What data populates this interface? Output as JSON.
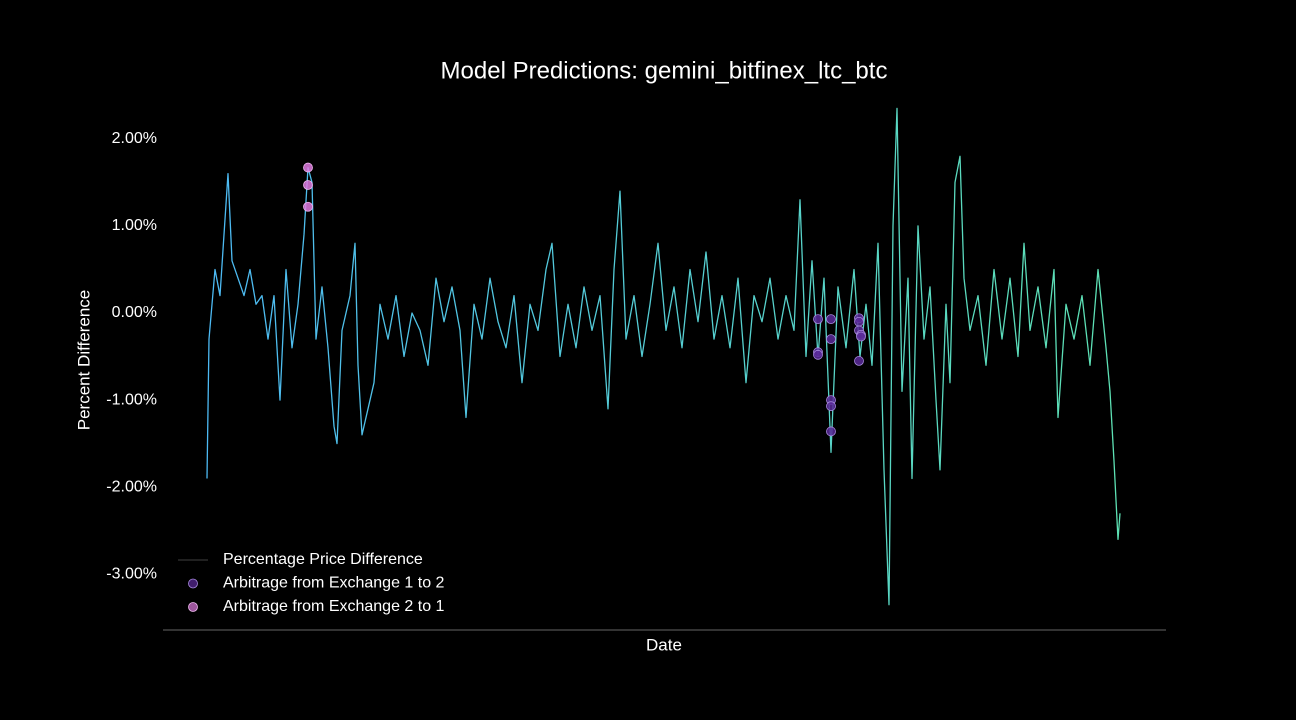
{
  "chart_data": {
    "type": "line",
    "title": "Model Predictions: gemini_bitfinex_ltc_btc",
    "xlabel": "Date",
    "ylabel": "Percent Difference",
    "xlim": [
      0,
      1003
    ],
    "ylim": [
      -3.64,
      2.4
    ],
    "yticks": [
      {
        "value": 2,
        "label": "2.00%"
      },
      {
        "value": 1,
        "label": "1.00%"
      },
      {
        "value": 0,
        "label": "0.00%"
      },
      {
        "value": -1,
        "label": "-1.00%"
      },
      {
        "value": -2,
        "label": "-2.00%"
      },
      {
        "value": -3,
        "label": "-3.00%"
      }
    ],
    "legend": "lower left",
    "series": [
      {
        "name": "Percentage Price Difference",
        "color": "#4cb8f7",
        "color_end": "#5ee3b0",
        "legend_color": "#2a2a2a",
        "x": [
          44,
          46,
          52,
          57,
          61,
          65,
          69,
          75,
          81,
          87,
          93,
          99,
          105,
          111,
          117,
          123,
          129,
          135,
          141,
          145,
          149,
          153,
          159,
          165,
          171,
          174,
          179,
          187,
          192,
          195,
          199,
          205,
          211,
          217,
          225,
          233,
          241,
          249,
          257,
          265,
          273,
          281,
          289,
          297,
          303,
          311,
          319,
          327,
          335,
          343,
          351,
          359,
          367,
          375,
          383,
          389,
          397,
          405,
          413,
          421,
          429,
          437,
          445,
          451,
          457,
          463,
          471,
          479,
          487,
          495,
          503,
          511,
          519,
          527,
          535,
          543,
          551,
          559,
          567,
          575,
          583,
          591,
          599,
          607,
          615,
          623,
          631,
          637,
          643,
          649,
          655,
          661,
          668,
          675,
          683,
          691,
          697,
          703,
          709,
          715,
          721,
          726,
          730,
          734,
          739,
          745,
          749,
          755,
          761,
          767,
          773,
          777,
          783,
          787,
          792,
          797,
          801,
          807,
          815,
          823,
          831,
          839,
          847,
          855,
          861,
          867,
          875,
          883,
          891,
          895,
          903,
          911,
          919,
          927,
          935,
          943,
          947,
          951,
          955,
          957
        ],
        "values": [
          -1.9,
          -0.3,
          0.5,
          0.2,
          0.9,
          1.6,
          0.6,
          0.4,
          0.2,
          0.5,
          0.1,
          0.2,
          -0.3,
          0.2,
          -1.0,
          0.5,
          -0.4,
          0.1,
          0.9,
          1.67,
          1.5,
          -0.3,
          0.3,
          -0.4,
          -1.3,
          -1.5,
          -0.2,
          0.2,
          0.8,
          -0.6,
          -1.4,
          -1.1,
          -0.8,
          0.1,
          -0.3,
          0.2,
          -0.5,
          0.0,
          -0.2,
          -0.6,
          0.4,
          -0.1,
          0.3,
          -0.2,
          -1.2,
          0.1,
          -0.3,
          0.4,
          -0.1,
          -0.4,
          0.2,
          -0.8,
          0.1,
          -0.2,
          0.5,
          0.8,
          -0.5,
          0.1,
          -0.4,
          0.3,
          -0.2,
          0.2,
          -1.1,
          0.5,
          1.4,
          -0.3,
          0.2,
          -0.5,
          0.1,
          0.8,
          -0.2,
          0.3,
          -0.4,
          0.5,
          -0.1,
          0.7,
          -0.3,
          0.2,
          -0.4,
          0.4,
          -0.8,
          0.2,
          -0.1,
          0.4,
          -0.3,
          0.2,
          -0.2,
          1.3,
          -0.5,
          0.6,
          -0.5,
          0.4,
          -1.6,
          0.3,
          -0.4,
          0.5,
          -0.5,
          0.1,
          -0.6,
          0.8,
          -1.8,
          -3.35,
          1.0,
          2.35,
          -0.9,
          0.4,
          -1.9,
          1.0,
          -0.3,
          0.3,
          -1.0,
          -1.8,
          0.1,
          -0.8,
          1.5,
          1.8,
          0.4,
          -0.2,
          0.2,
          -0.6,
          0.5,
          -0.3,
          0.4,
          -0.5,
          0.8,
          -0.2,
          0.3,
          -0.4,
          0.5,
          -1.2,
          0.1,
          -0.3,
          0.2,
          -0.6,
          0.5,
          -0.4,
          -0.9,
          -1.7,
          -2.6,
          -2.3
        ]
      },
      {
        "name": "Arbitrage from Exchange 1 to 2",
        "kind": "scatter",
        "color": "#5b2a9a",
        "edge": "#a98be0",
        "x": [
          655,
          655,
          655,
          668,
          668,
          668,
          668,
          668,
          696,
          696,
          696,
          698,
          698,
          696
        ],
        "values": [
          -0.07,
          -0.45,
          -0.48,
          -0.07,
          -0.3,
          -1.0,
          -1.07,
          -1.36,
          -0.06,
          -0.1,
          -0.2,
          -0.25,
          -0.27,
          -0.55
        ]
      },
      {
        "name": "Arbitrage from Exchange 2 to 1",
        "kind": "scatter",
        "color": "#e07ae0",
        "edge": "#f0b8f0",
        "x": [
          145,
          145,
          145
        ],
        "values": [
          1.67,
          1.47,
          1.22
        ]
      }
    ]
  }
}
